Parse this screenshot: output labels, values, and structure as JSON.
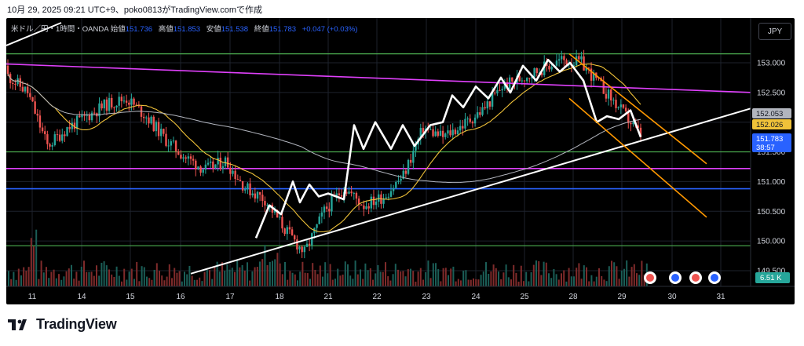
{
  "caption": "10月 29, 2025 09:21 UTC+9、poko0813がTradingView.comで作成",
  "legend": {
    "symbol": "米ドル／円・1時間・OANDA",
    "open_label": "始値",
    "open": "151.736",
    "high_label": "高値",
    "high": "151.853",
    "low_label": "安値",
    "low": "151.538",
    "close_label": "終値",
    "close": "151.783",
    "change": "+0.047 (+0.03%)"
  },
  "currency_button": "JPY",
  "footer_brand": "TradingView",
  "colors": {
    "background": "#000000",
    "bull": "#26a69a",
    "bear": "#ef5350",
    "ma_fast": "#f0c239",
    "ma_slow": "#b2b5be",
    "green_level": "#4caf50",
    "magenta": "#e040fb",
    "blue_level": "#2962ff",
    "channel": "#ff9800",
    "zigzag": "#ffffff"
  },
  "chart_data": {
    "type": "candlestick",
    "symbol": "USDJPY",
    "timeframe": "1h",
    "x_ticks": [
      "11",
      "14",
      "15",
      "16",
      "17",
      "18",
      "21",
      "22",
      "23",
      "24",
      "25",
      "28",
      "29",
      "30",
      "31"
    ],
    "y_ticks": [
      "153.000",
      "152.500",
      "152.000",
      "151.500",
      "151.000",
      "150.500",
      "150.000",
      "149.500"
    ],
    "ylim": [
      149.5,
      153.2
    ],
    "horizontal_levels": [
      {
        "price": 153.15,
        "color": "green"
      },
      {
        "price": 151.5,
        "color": "green"
      },
      {
        "price": 151.22,
        "color": "magenta"
      },
      {
        "price": 150.88,
        "color": "blue"
      },
      {
        "price": 149.92,
        "color": "green"
      }
    ],
    "price_tags": [
      {
        "label": "152.053",
        "style": "gray"
      },
      {
        "label": "152.026",
        "style": "yellow"
      },
      {
        "label": "151.783",
        "sub": "38:57",
        "style": "blue"
      }
    ],
    "volume_tag": "6.51 K",
    "candles": [
      {
        "i": 0,
        "o": 152.95,
        "h": 153.0,
        "l": 152.7,
        "c": 152.78
      },
      {
        "i": 1,
        "o": 152.78,
        "h": 152.85,
        "l": 152.4,
        "c": 152.5
      },
      {
        "i": 2,
        "o": 152.5,
        "h": 152.6,
        "l": 151.2,
        "c": 151.6
      },
      {
        "i": 3,
        "o": 151.6,
        "h": 152.0,
        "l": 151.5,
        "c": 151.9
      },
      {
        "i": 4,
        "o": 151.9,
        "h": 152.3,
        "l": 151.8,
        "c": 152.1
      },
      {
        "i": 5,
        "o": 152.1,
        "h": 152.5,
        "l": 151.9,
        "c": 152.3
      },
      {
        "i": 6,
        "o": 152.3,
        "h": 152.6,
        "l": 152.1,
        "c": 152.4
      },
      {
        "i": 7,
        "o": 152.4,
        "h": 152.55,
        "l": 151.95,
        "c": 152.1
      },
      {
        "i": 8,
        "o": 152.1,
        "h": 152.2,
        "l": 151.6,
        "c": 151.7
      },
      {
        "i": 9,
        "o": 151.7,
        "h": 151.8,
        "l": 151.3,
        "c": 151.4
      },
      {
        "i": 10,
        "o": 151.4,
        "h": 151.6,
        "l": 151.0,
        "c": 151.2
      },
      {
        "i": 11,
        "o": 151.2,
        "h": 151.5,
        "l": 150.9,
        "c": 151.35
      },
      {
        "i": 12,
        "o": 151.35,
        "h": 151.45,
        "l": 150.8,
        "c": 150.9
      },
      {
        "i": 13,
        "o": 150.9,
        "h": 151.1,
        "l": 150.55,
        "c": 150.7
      },
      {
        "i": 14,
        "o": 150.7,
        "h": 150.9,
        "l": 150.1,
        "c": 150.2
      },
      {
        "i": 15,
        "o": 150.2,
        "h": 150.35,
        "l": 149.6,
        "c": 149.8
      },
      {
        "i": 16,
        "o": 149.8,
        "h": 150.6,
        "l": 149.6,
        "c": 150.5
      },
      {
        "i": 17,
        "o": 150.5,
        "h": 151.0,
        "l": 150.4,
        "c": 150.9
      },
      {
        "i": 18,
        "o": 150.9,
        "h": 151.0,
        "l": 150.5,
        "c": 150.6
      },
      {
        "i": 19,
        "o": 150.6,
        "h": 150.9,
        "l": 150.5,
        "c": 150.75
      },
      {
        "i": 20,
        "o": 150.75,
        "h": 151.2,
        "l": 150.6,
        "c": 151.1
      },
      {
        "i": 21,
        "o": 151.1,
        "h": 152.1,
        "l": 151.0,
        "c": 151.9
      },
      {
        "i": 22,
        "o": 151.9,
        "h": 152.0,
        "l": 151.6,
        "c": 151.75
      },
      {
        "i": 23,
        "o": 151.75,
        "h": 152.05,
        "l": 151.6,
        "c": 151.95
      },
      {
        "i": 24,
        "o": 151.95,
        "h": 152.3,
        "l": 151.85,
        "c": 152.2
      },
      {
        "i": 25,
        "o": 152.2,
        "h": 152.75,
        "l": 152.1,
        "c": 152.6
      },
      {
        "i": 26,
        "o": 152.6,
        "h": 152.85,
        "l": 152.5,
        "c": 152.75
      },
      {
        "i": 27,
        "o": 152.75,
        "h": 153.0,
        "l": 152.6,
        "c": 152.9
      },
      {
        "i": 28,
        "o": 152.9,
        "h": 153.1,
        "l": 152.8,
        "c": 153.05
      },
      {
        "i": 29,
        "o": 153.05,
        "h": 153.15,
        "l": 152.9,
        "c": 153.0
      },
      {
        "i": 30,
        "o": 153.0,
        "h": 153.1,
        "l": 152.5,
        "c": 152.6
      },
      {
        "i": 31,
        "o": 152.6,
        "h": 152.75,
        "l": 152.0,
        "c": 152.2
      },
      {
        "i": 32,
        "o": 152.2,
        "h": 152.25,
        "l": 151.7,
        "c": 151.78
      }
    ]
  }
}
